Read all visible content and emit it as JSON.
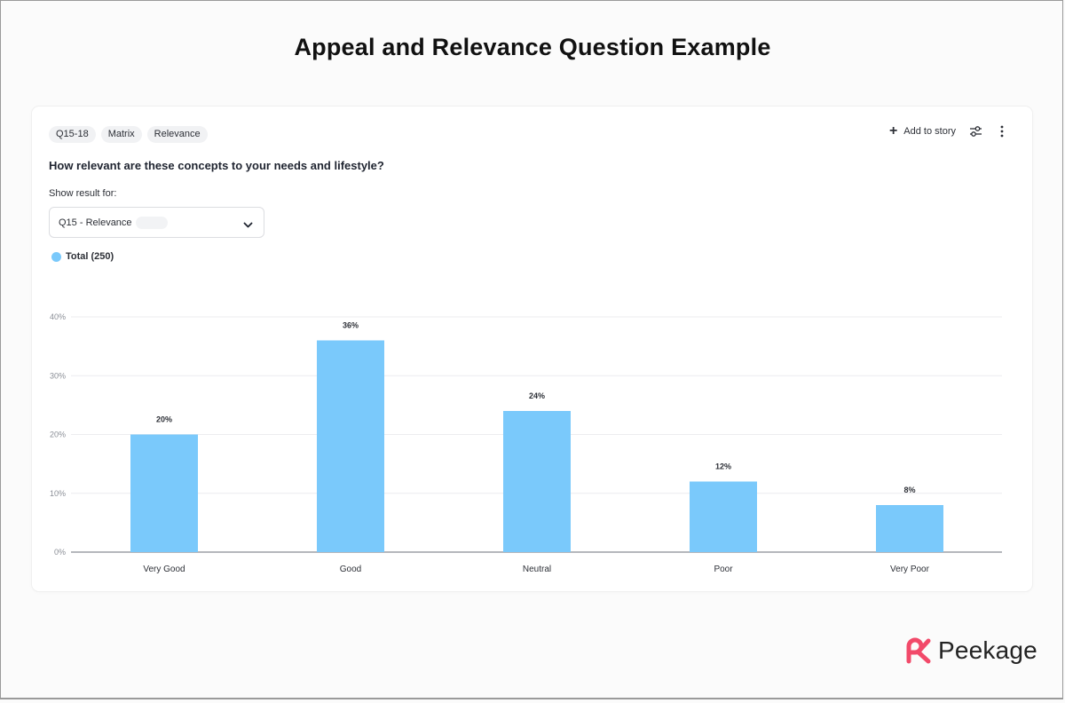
{
  "page": {
    "title": "Appeal and Relevance Question Example"
  },
  "card": {
    "tags": [
      "Q15-18",
      "Matrix",
      "Relevance"
    ],
    "actions": {
      "add_story_label": "Add to story"
    },
    "question": "How relevant are these concepts to your needs and lifestyle?",
    "show_result_label": "Show result for:",
    "select_value": "Q15 - Relevance",
    "legend_label": "Total (250)"
  },
  "colors": {
    "bar": "#7ac9fb",
    "brand": "#f24a6a"
  },
  "icons": {
    "add": "plus-icon",
    "settings": "sliders-icon",
    "menu": "kebab-icon",
    "dropdown": "chevron-down-icon"
  },
  "brand": {
    "name": "Peekage"
  },
  "chart_data": {
    "type": "bar",
    "categories": [
      "Very Good",
      "Good",
      "Neutral",
      "Poor",
      "Very Poor"
    ],
    "series": [
      {
        "name": "Total (250)",
        "values": [
          20,
          36,
          24,
          12,
          8
        ]
      }
    ],
    "value_labels": [
      "20%",
      "36%",
      "24%",
      "12%",
      "8%"
    ],
    "y_ticks": [
      "0%",
      "10%",
      "20%",
      "30%",
      "40%"
    ],
    "ylim": [
      0,
      40
    ],
    "grid": true,
    "legend": "top-left"
  }
}
